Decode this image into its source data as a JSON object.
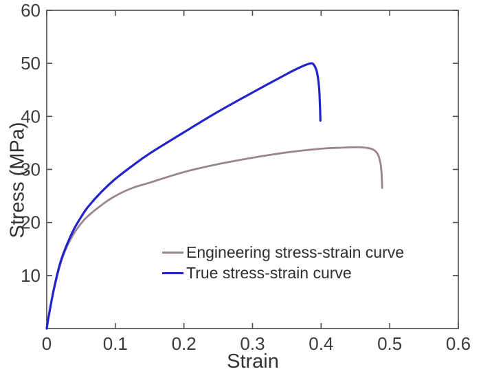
{
  "chart_data": {
    "type": "line",
    "title": "",
    "xlabel": "Strain",
    "ylabel": "Stress (MPa)",
    "xlim": [
      0,
      0.6
    ],
    "ylim": [
      0,
      60
    ],
    "xticks": [
      0,
      0.1,
      0.2,
      0.3,
      0.4,
      0.5,
      0.6
    ],
    "xtick_labels": [
      "0",
      "0.1",
      "0.2",
      "0.3",
      "0.4",
      "0.5",
      "0.6"
    ],
    "yticks": [
      10,
      20,
      30,
      40,
      50,
      60
    ],
    "ytick_labels": [
      "10",
      "20",
      "30",
      "40",
      "50",
      "60"
    ],
    "grid": false,
    "box": true,
    "tick_direction": "in",
    "axis_color": "#4a4a4a",
    "tick_label_color": "#3c3c3c",
    "legend_position": "inside-lower-center",
    "series": [
      {
        "name": "Engineering stress-strain curve",
        "color": "#9a8492",
        "line_width": 2.8,
        "points": [
          [
            0,
            0
          ],
          [
            0.003,
            2.3
          ],
          [
            0.01,
            7.0
          ],
          [
            0.02,
            12.2
          ],
          [
            0.03,
            15.6
          ],
          [
            0.04,
            18.0
          ],
          [
            0.05,
            19.8
          ],
          [
            0.06,
            21.2
          ],
          [
            0.08,
            23.3
          ],
          [
            0.1,
            25.0
          ],
          [
            0.125,
            26.5
          ],
          [
            0.15,
            27.5
          ],
          [
            0.2,
            29.5
          ],
          [
            0.25,
            31.0
          ],
          [
            0.3,
            32.2
          ],
          [
            0.35,
            33.2
          ],
          [
            0.4,
            33.9
          ],
          [
            0.43,
            34.1
          ],
          [
            0.45,
            34.2
          ],
          [
            0.465,
            34.1
          ],
          [
            0.475,
            33.8
          ],
          [
            0.482,
            33.0
          ],
          [
            0.486,
            31.5
          ],
          [
            0.488,
            29.5
          ],
          [
            0.489,
            26.5
          ]
        ]
      },
      {
        "name": "True stress-strain curve",
        "color": "#2323cb",
        "line_width": 3.2,
        "points": [
          [
            0,
            0
          ],
          [
            0.003,
            2.4
          ],
          [
            0.01,
            7.2
          ],
          [
            0.02,
            12.5
          ],
          [
            0.03,
            16.0
          ],
          [
            0.04,
            18.8
          ],
          [
            0.05,
            21.0
          ],
          [
            0.06,
            22.9
          ],
          [
            0.08,
            25.8
          ],
          [
            0.1,
            28.2
          ],
          [
            0.125,
            30.7
          ],
          [
            0.15,
            33.0
          ],
          [
            0.2,
            37.0
          ],
          [
            0.25,
            40.9
          ],
          [
            0.3,
            44.5
          ],
          [
            0.35,
            48.0
          ],
          [
            0.37,
            49.3
          ],
          [
            0.385,
            50.0
          ],
          [
            0.39,
            49.6
          ],
          [
            0.394,
            48.3
          ],
          [
            0.397,
            45.5
          ],
          [
            0.398,
            43.0
          ],
          [
            0.399,
            39.2
          ]
        ]
      }
    ]
  }
}
